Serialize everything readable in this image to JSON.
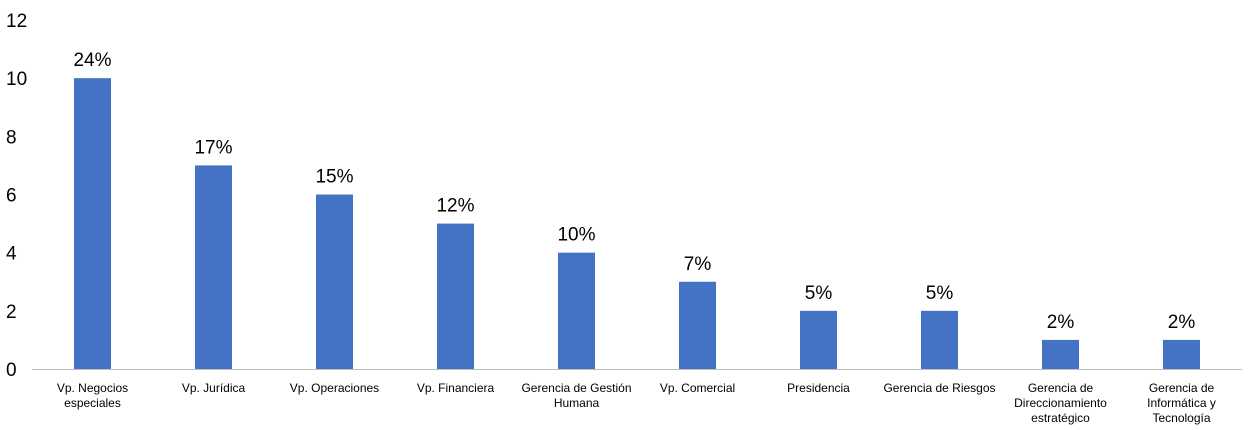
{
  "chart_data": {
    "type": "bar",
    "title": "",
    "xlabel": "",
    "ylabel": "",
    "ylim": [
      0,
      12
    ],
    "yticks": [
      0,
      2,
      4,
      6,
      8,
      10,
      12
    ],
    "grid": false,
    "legend": "none",
    "bar_color": "#4472C4",
    "categories": [
      "Vp. Negocios especiales",
      "Vp. Jurídica",
      "Vp. Operaciones",
      "Vp. Financiera",
      "Gerencia de Gestión Humana",
      "Vp. Comercial",
      "Presidencia",
      "Gerencia de Riesgos",
      "Gerencia de Direccionamiento estratégico",
      "Gerencia de Informática y Tecnología"
    ],
    "category_lines": [
      [
        "Vp. Negocios",
        "especiales"
      ],
      [
        "Vp. Jurídica"
      ],
      [
        "Vp. Operaciones"
      ],
      [
        "Vp. Financiera"
      ],
      [
        "Gerencia de Gestión",
        "Humana"
      ],
      [
        "Vp. Comercial"
      ],
      [
        "Presidencia"
      ],
      [
        "Gerencia de Riesgos"
      ],
      [
        "Gerencia de",
        "Direccionamiento",
        "estratégico"
      ],
      [
        "Gerencia de",
        "Informática y",
        "Tecnología"
      ]
    ],
    "values": [
      10,
      7,
      6,
      5,
      4,
      3,
      2,
      2,
      1,
      1
    ],
    "data_labels": [
      "24%",
      "17%",
      "15%",
      "12%",
      "10%",
      "7%",
      "5%",
      "5%",
      "2%",
      "2%"
    ]
  }
}
